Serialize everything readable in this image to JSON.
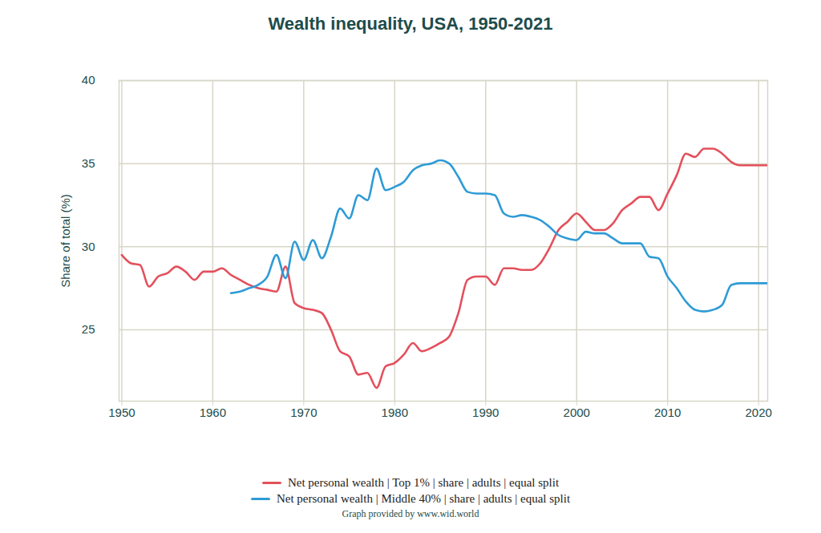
{
  "chart_data": {
    "type": "line",
    "title": "Wealth inequality, USA, 1950-2021",
    "y_label": "Share of total (%)",
    "caption": "Graph provided by www.wid.world",
    "x": [
      1950,
      1951,
      1952,
      1953,
      1954,
      1955,
      1956,
      1957,
      1958,
      1959,
      1960,
      1961,
      1962,
      1963,
      1964,
      1965,
      1966,
      1967,
      1968,
      1969,
      1970,
      1971,
      1972,
      1973,
      1974,
      1975,
      1976,
      1977,
      1978,
      1979,
      1980,
      1981,
      1982,
      1983,
      1984,
      1985,
      1986,
      1987,
      1988,
      1989,
      1990,
      1991,
      1992,
      1993,
      1994,
      1995,
      1996,
      1997,
      1998,
      1999,
      2000,
      2001,
      2002,
      2003,
      2004,
      2005,
      2006,
      2007,
      2008,
      2009,
      2010,
      2011,
      2012,
      2013,
      2014,
      2015,
      2016,
      2017,
      2018,
      2019,
      2020,
      2021
    ],
    "series": [
      {
        "name": "Net personal wealth | Top 1% | share | adults | equal split",
        "color": "#e3505c",
        "values": [
          29.5,
          29.0,
          28.9,
          27.6,
          28.2,
          28.4,
          28.8,
          28.5,
          28.0,
          28.5,
          28.5,
          28.7,
          28.3,
          28.0,
          27.7,
          27.5,
          27.4,
          27.3,
          28.8,
          26.6,
          26.3,
          26.2,
          26.0,
          25.0,
          23.7,
          23.4,
          22.3,
          22.4,
          21.5,
          22.8,
          23.0,
          23.5,
          24.2,
          23.7,
          23.9,
          24.2,
          24.6,
          26.0,
          28.0,
          28.2,
          28.2,
          27.7,
          28.7,
          28.7,
          28.6,
          28.6,
          29.0,
          29.9,
          31.0,
          31.5,
          32.0,
          31.5,
          31.0,
          31.0,
          31.4,
          32.2,
          32.6,
          33.0,
          33.0,
          32.2,
          33.2,
          34.3,
          35.6,
          35.4,
          35.9,
          35.9,
          35.6,
          35.1,
          34.9,
          34.9,
          34.9,
          34.9
        ]
      },
      {
        "name": "Net personal wealth | Middle 40% | share | adults | equal split",
        "color": "#2e9bd6",
        "values": [
          null,
          null,
          null,
          null,
          null,
          null,
          null,
          null,
          null,
          null,
          null,
          null,
          27.2,
          27.3,
          27.5,
          27.7,
          28.2,
          29.5,
          28.1,
          30.3,
          29.2,
          30.4,
          29.3,
          30.6,
          32.3,
          31.7,
          33.1,
          32.8,
          34.7,
          33.4,
          33.6,
          33.9,
          34.6,
          34.9,
          35.0,
          35.2,
          35.0,
          34.2,
          33.3,
          33.2,
          33.2,
          33.1,
          32.0,
          31.8,
          31.9,
          31.8,
          31.6,
          31.2,
          30.7,
          30.5,
          30.4,
          30.9,
          30.8,
          30.8,
          30.5,
          30.2,
          30.2,
          30.2,
          29.4,
          29.3,
          28.2,
          27.5,
          26.7,
          26.2,
          26.1,
          26.2,
          26.5,
          27.7,
          27.8,
          27.8,
          27.8,
          27.8
        ]
      }
    ],
    "xlim": [
      1949.7,
      2021
    ],
    "ylim": [
      20.7,
      40
    ],
    "xticks": [
      1950,
      1960,
      1970,
      1980,
      1990,
      2000,
      2010,
      2020
    ],
    "yticks": [
      25,
      30,
      35,
      40
    ],
    "grid": true,
    "legend": "bottom"
  }
}
